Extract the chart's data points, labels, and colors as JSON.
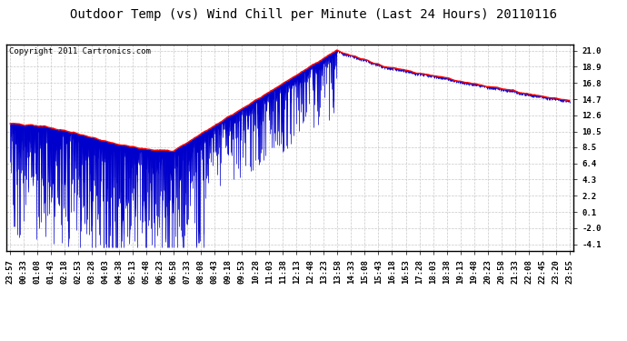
{
  "title": "Outdoor Temp (vs) Wind Chill per Minute (Last 24 Hours) 20110116",
  "copyright_text": "Copyright 2011 Cartronics.com",
  "y_ticks": [
    -4.1,
    -2.0,
    0.1,
    2.2,
    4.3,
    6.4,
    8.5,
    10.5,
    12.6,
    14.7,
    16.8,
    18.9,
    21.0
  ],
  "x_tick_labels": [
    "23:57",
    "00:33",
    "01:08",
    "01:43",
    "02:18",
    "02:53",
    "03:28",
    "04:03",
    "04:38",
    "05:13",
    "05:48",
    "06:23",
    "06:58",
    "07:33",
    "08:08",
    "08:43",
    "09:18",
    "09:53",
    "10:28",
    "11:03",
    "11:38",
    "12:13",
    "12:48",
    "13:23",
    "13:58",
    "14:33",
    "15:08",
    "15:43",
    "16:18",
    "16:53",
    "17:28",
    "18:03",
    "18:38",
    "19:13",
    "19:48",
    "20:23",
    "20:58",
    "21:33",
    "22:08",
    "22:45",
    "23:20",
    "23:55"
  ],
  "y_min": -4.9,
  "y_max": 21.8,
  "background_color": "#ffffff",
  "plot_bg_color": "#ffffff",
  "grid_color": "#c8c8c8",
  "bar_color": "#0000cc",
  "line_color": "#ff0000",
  "title_fontsize": 10,
  "copyright_fontsize": 6.5,
  "tick_fontsize": 6.5,
  "num_points": 1440
}
